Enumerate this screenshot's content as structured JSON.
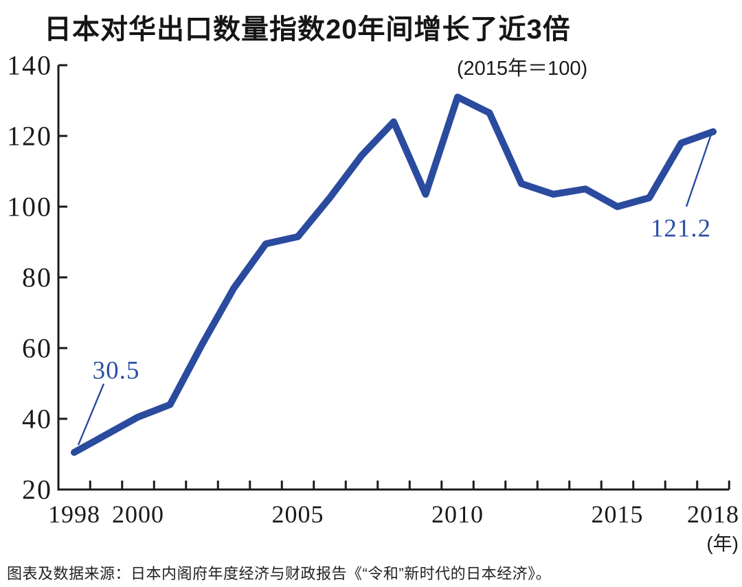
{
  "page": {
    "title": "日本对华出口数量指数20年间增长了近3倍",
    "subtitle": "(2015年＝100)",
    "unit_label": "(年)",
    "source": "图表及数据来源：日本内阁府年度经济与财政报告《“令和”新时代的日本经济》。"
  },
  "chart_data": {
    "type": "line",
    "title": "日本对华出口数量指数20年间增长了近3倍",
    "subtitle": "(2015年＝100)",
    "xlabel": "年",
    "ylabel": "",
    "x": [
      1998,
      1999,
      2000,
      2001,
      2002,
      2003,
      2004,
      2005,
      2006,
      2007,
      2008,
      2009,
      2010,
      2011,
      2012,
      2013,
      2014,
      2015,
      2016,
      2017,
      2018
    ],
    "series": [
      {
        "name": "日本对华出口数量指数",
        "values": [
          30.5,
          35.5,
          40.5,
          44,
          61,
          77,
          89.5,
          91.5,
          102.5,
          114.5,
          124,
          103.5,
          131,
          126.5,
          106.5,
          103.5,
          105,
          100,
          102.5,
          118,
          121.2
        ]
      }
    ],
    "ylim": [
      20,
      140
    ],
    "xlim": [
      1997.5,
      2018.5
    ],
    "yticks": [
      20,
      40,
      60,
      80,
      100,
      120,
      140
    ],
    "xticks_labeled": [
      1998,
      2000,
      2005,
      2010,
      2015,
      2018
    ],
    "xticks_minor_at_half_years": true,
    "grid": false,
    "legend_position": "none",
    "annotations": [
      {
        "year": 1998,
        "value": 30.5,
        "label": "30.5"
      },
      {
        "year": 2018,
        "value": 121.2,
        "label": "121.2"
      }
    ],
    "colors": {
      "line": "#2a4b9e",
      "annotation_text": "#2b4fa5",
      "axis": "#1a1a1a"
    }
  }
}
